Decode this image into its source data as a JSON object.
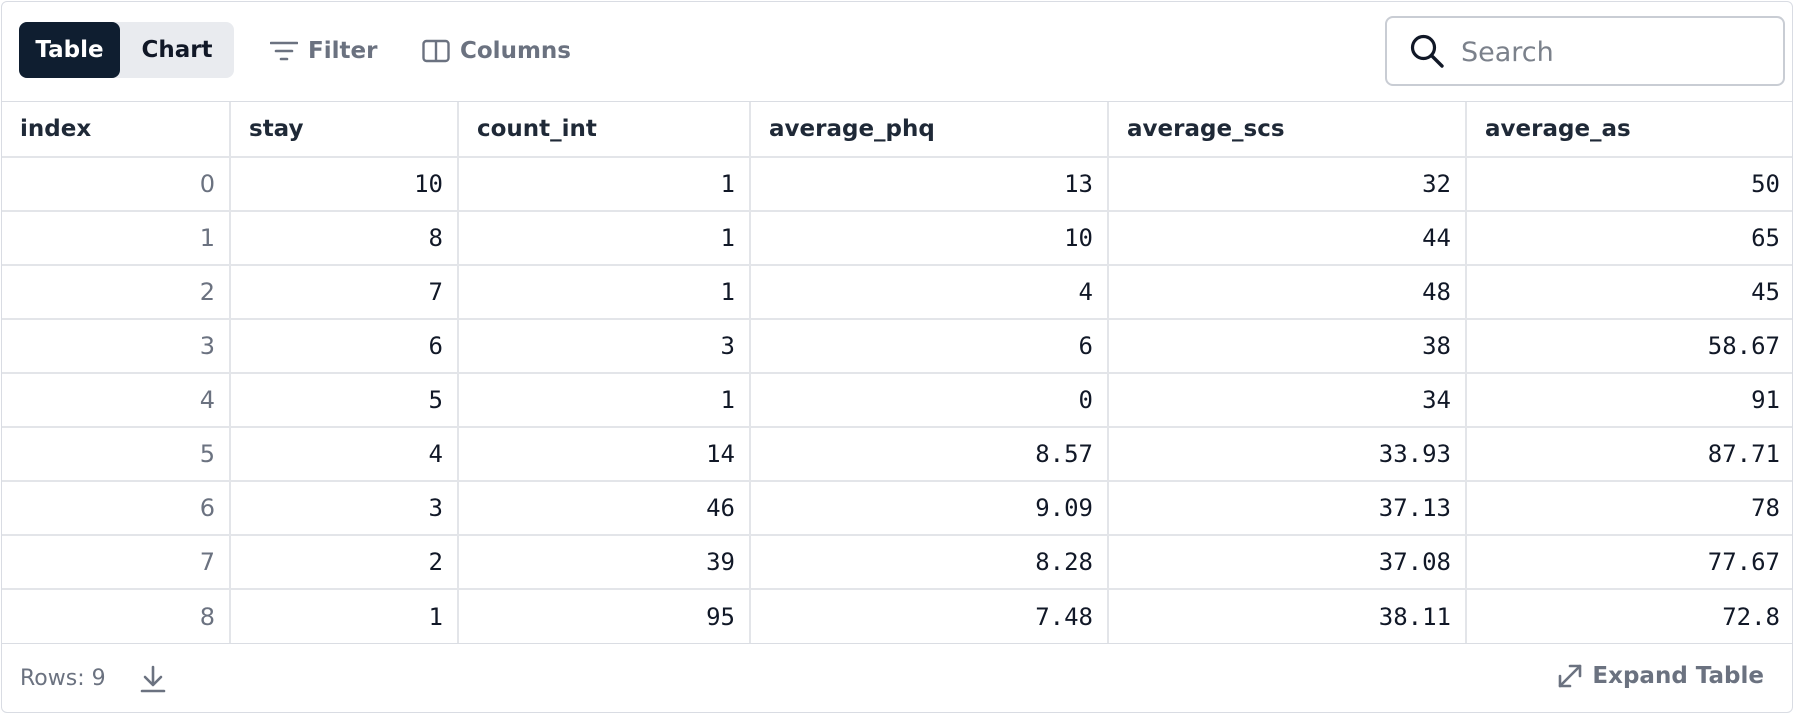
{
  "toolbar": {
    "view_toggle": {
      "table_label": "Table",
      "chart_label": "Chart",
      "selected": "Table"
    },
    "filter_label": "Filter",
    "columns_label": "Columns",
    "search": {
      "placeholder": "Search",
      "value": ""
    },
    "icons": {
      "filter": "filter-icon",
      "columns": "columns-icon",
      "search": "search-icon"
    }
  },
  "table": {
    "columns": [
      "index",
      "stay",
      "count_int",
      "average_phq",
      "average_scs",
      "average_as"
    ],
    "rows": [
      [
        "0",
        "10",
        "1",
        "13",
        "32",
        "50"
      ],
      [
        "1",
        "8",
        "1",
        "10",
        "44",
        "65"
      ],
      [
        "2",
        "7",
        "1",
        "4",
        "48",
        "45"
      ],
      [
        "3",
        "6",
        "3",
        "6",
        "38",
        "58.67"
      ],
      [
        "4",
        "5",
        "1",
        "0",
        "34",
        "91"
      ],
      [
        "5",
        "4",
        "14",
        "8.57",
        "33.93",
        "87.71"
      ],
      [
        "6",
        "3",
        "46",
        "9.09",
        "37.13",
        "78"
      ],
      [
        "7",
        "2",
        "39",
        "8.28",
        "37.08",
        "77.67"
      ],
      [
        "8",
        "1",
        "95",
        "7.48",
        "38.11",
        "72.8"
      ]
    ]
  },
  "footer": {
    "rows_label": "Rows: 9",
    "expand_label": "Expand Table",
    "icons": {
      "download": "download-icon",
      "expand": "expand-icon"
    }
  },
  "colors": {
    "accent_dark": "#0f1e30",
    "toggle_bg": "#e9ebef",
    "muted_text": "#6b7280",
    "grid_line": "#e3e5e9"
  }
}
